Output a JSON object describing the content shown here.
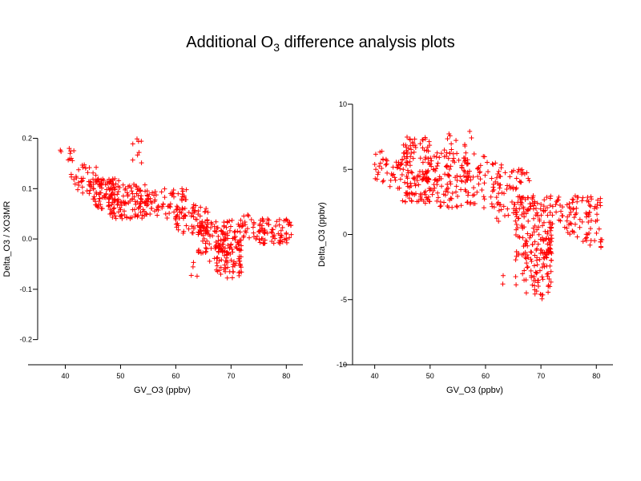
{
  "title": {
    "prefix": "Additional O",
    "subscript": "3",
    "suffix": " difference analysis plots"
  },
  "chart_data": [
    {
      "type": "scatter",
      "marker": "+",
      "color": "#ff0000",
      "xlabel": "GV_O3 (ppbv)",
      "ylabel": "Delta_O3 / XO3MR",
      "xlim": [
        35,
        83
      ],
      "ylim": [
        -0.25,
        0.22
      ],
      "xticks": [
        40,
        50,
        60,
        70,
        80
      ],
      "yticks": [
        0.2,
        0.1,
        0.0,
        -0.1,
        -0.2
      ],
      "ytick_labels": [
        "0.2",
        "0.1",
        "0.0",
        "-0.1",
        "-0.2"
      ],
      "clusters": [
        {
          "x": [
            38.5,
            42
          ],
          "y": [
            0.15,
            0.18
          ],
          "n": 10
        },
        {
          "x": [
            41,
            46
          ],
          "y": [
            0.09,
            0.15
          ],
          "n": 40
        },
        {
          "x": [
            45,
            50
          ],
          "y": [
            0.06,
            0.12
          ],
          "n": 90
        },
        {
          "x": [
            48,
            55
          ],
          "y": [
            0.04,
            0.11
          ],
          "n": 110
        },
        {
          "x": [
            52,
            55
          ],
          "y": [
            0.15,
            0.2
          ],
          "n": 8
        },
        {
          "x": [
            54,
            62
          ],
          "y": [
            0.04,
            0.1
          ],
          "n": 70
        },
        {
          "x": [
            60,
            66
          ],
          "y": [
            0.01,
            0.07
          ],
          "n": 60
        },
        {
          "x": [
            64,
            72
          ],
          "y": [
            -0.03,
            0.04
          ],
          "n": 120
        },
        {
          "x": [
            67,
            72
          ],
          "y": [
            -0.07,
            -0.01
          ],
          "n": 60
        },
        {
          "x": [
            72,
            76
          ],
          "y": [
            0.0,
            0.05
          ],
          "n": 30
        },
        {
          "x": [
            75,
            81
          ],
          "y": [
            -0.01,
            0.04
          ],
          "n": 70
        },
        {
          "x": [
            62,
            72
          ],
          "y": [
            -0.08,
            -0.04
          ],
          "n": 12
        }
      ]
    },
    {
      "type": "scatter",
      "marker": "+",
      "color": "#ff0000",
      "xlabel": "GV_O3 (ppbv)",
      "ylabel": "Delta_O3 (ppbv)",
      "xlim": [
        36,
        83
      ],
      "ylim": [
        -10,
        10
      ],
      "xticks": [
        40,
        50,
        60,
        70,
        80
      ],
      "yticks": [
        10,
        5,
        0,
        -5,
        -10
      ],
      "ytick_labels": [
        "10",
        "5",
        "0",
        "-5",
        "-10"
      ],
      "clusters": [
        {
          "x": [
            38.5,
            42
          ],
          "y": [
            5,
            7
          ],
          "n": 10
        },
        {
          "x": [
            40,
            46
          ],
          "y": [
            3.5,
            6
          ],
          "n": 40
        },
        {
          "x": [
            45,
            50
          ],
          "y": [
            2.5,
            7.5
          ],
          "n": 110
        },
        {
          "x": [
            49,
            57
          ],
          "y": [
            2,
            6.5
          ],
          "n": 130
        },
        {
          "x": [
            53,
            58
          ],
          "y": [
            6,
            8
          ],
          "n": 12
        },
        {
          "x": [
            56,
            63
          ],
          "y": [
            2,
            6
          ],
          "n": 60
        },
        {
          "x": [
            62,
            68
          ],
          "y": [
            1,
            5
          ],
          "n": 60
        },
        {
          "x": [
            65,
            72
          ],
          "y": [
            -2,
            3
          ],
          "n": 150
        },
        {
          "x": [
            67,
            72
          ],
          "y": [
            -5,
            -1
          ],
          "n": 60
        },
        {
          "x": [
            72,
            76
          ],
          "y": [
            0,
            3
          ],
          "n": 30
        },
        {
          "x": [
            75,
            81
          ],
          "y": [
            -1,
            3
          ],
          "n": 70
        },
        {
          "x": [
            63,
            72
          ],
          "y": [
            -4,
            -2
          ],
          "n": 12
        }
      ]
    }
  ]
}
